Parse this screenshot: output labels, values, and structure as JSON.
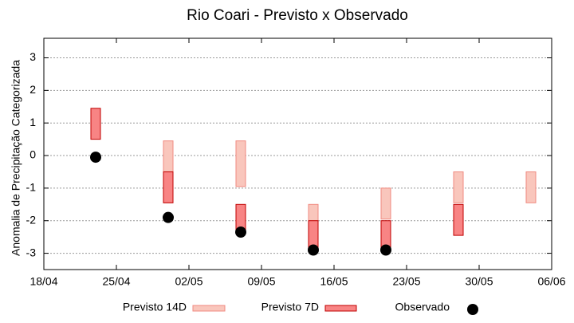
{
  "chart_data": {
    "type": "range-bar",
    "title": "Rio Coari - Previsto x Observado",
    "y_label": "Anomalia de Precipitação Categorizada",
    "xlim": [
      "04-18",
      "06-06"
    ],
    "xticks": [
      {
        "value": "04-18",
        "label": "18/04"
      },
      {
        "value": "04-25",
        "label": "25/04"
      },
      {
        "value": "05-02",
        "label": "02/05"
      },
      {
        "value": "05-09",
        "label": "09/05"
      },
      {
        "value": "05-16",
        "label": "16/05"
      },
      {
        "value": "05-23",
        "label": "23/05"
      },
      {
        "value": "05-30",
        "label": "30/05"
      },
      {
        "value": "06-06",
        "label": "06/06"
      }
    ],
    "ylim": [
      -3.5,
      3.6
    ],
    "yticks": [
      -3,
      -2,
      -1,
      0,
      1,
      2,
      3
    ],
    "grid": true,
    "series": [
      {
        "name": "Previsto 14D",
        "type": "range-bar",
        "color": "#f9c6bc",
        "stroke": "#f08a80",
        "x": [
          "04-30",
          "05-07",
          "05-14",
          "05-21",
          "05-28",
          "06-04"
        ],
        "low": [
          -1.45,
          -0.95,
          -2.0,
          -1.95,
          -1.45,
          -1.45
        ],
        "high": [
          0.45,
          0.45,
          -1.5,
          -1.0,
          -0.5,
          -0.5
        ]
      },
      {
        "name": "Previsto 7D",
        "type": "range-bar",
        "color": "#f88484",
        "stroke": "#c00000",
        "x": [
          "04-23",
          "04-30",
          "05-07",
          "05-14",
          "05-21",
          "05-28"
        ],
        "low": [
          0.5,
          -1.45,
          -2.35,
          -2.95,
          -2.95,
          -2.45
        ],
        "high": [
          1.45,
          -0.5,
          -1.5,
          -2.0,
          -2.0,
          -1.5
        ]
      },
      {
        "name": "Observado",
        "type": "scatter",
        "color": "#000000",
        "x": [
          "04-23",
          "04-30",
          "05-07",
          "05-14",
          "05-21"
        ],
        "values": [
          -0.05,
          -1.9,
          -2.35,
          -2.9,
          -2.9
        ]
      }
    ]
  }
}
